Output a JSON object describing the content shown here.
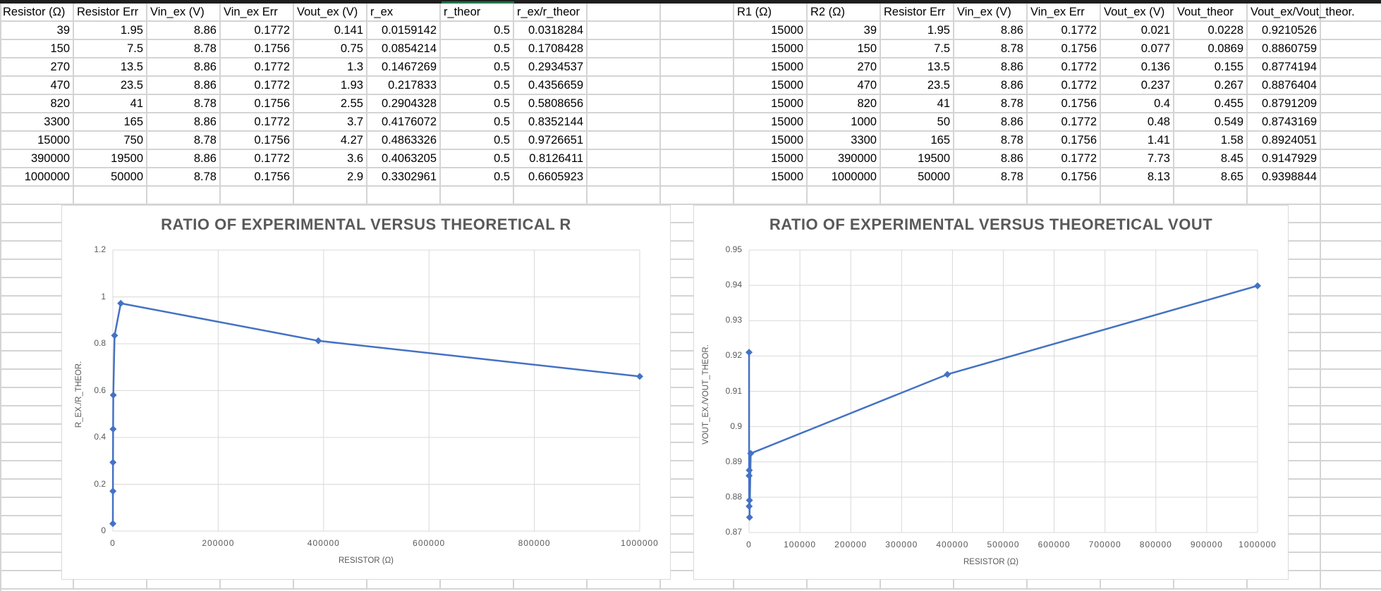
{
  "sheet": {
    "left_table": {
      "headers": [
        "Resistor (Ω)",
        "Resistor Err",
        "Vin_ex (V)",
        "Vin_ex Err",
        "Vout_ex (V)",
        "r_ex",
        "r_theor",
        "r_ex/r_theor"
      ],
      "rows": [
        [
          "39",
          "1.95",
          "8.86",
          "0.1772",
          "0.141",
          "0.0159142",
          "0.5",
          "0.0318284"
        ],
        [
          "150",
          "7.5",
          "8.78",
          "0.1756",
          "0.75",
          "0.0854214",
          "0.5",
          "0.1708428"
        ],
        [
          "270",
          "13.5",
          "8.86",
          "0.1772",
          "1.3",
          "0.1467269",
          "0.5",
          "0.2934537"
        ],
        [
          "470",
          "23.5",
          "8.86",
          "0.1772",
          "1.93",
          "0.217833",
          "0.5",
          "0.4356659"
        ],
        [
          "820",
          "41",
          "8.78",
          "0.1756",
          "2.55",
          "0.2904328",
          "0.5",
          "0.5808656"
        ],
        [
          "3300",
          "165",
          "8.86",
          "0.1772",
          "3.7",
          "0.4176072",
          "0.5",
          "0.8352144"
        ],
        [
          "15000",
          "750",
          "8.78",
          "0.1756",
          "4.27",
          "0.4863326",
          "0.5",
          "0.9726651"
        ],
        [
          "390000",
          "19500",
          "8.86",
          "0.1772",
          "3.6",
          "0.4063205",
          "0.5",
          "0.8126411"
        ],
        [
          "1000000",
          "50000",
          "8.78",
          "0.1756",
          "2.9",
          "0.3302961",
          "0.5",
          "0.6605923"
        ]
      ]
    },
    "right_table": {
      "headers": [
        "R1 (Ω)",
        "R2 (Ω)",
        "Resistor Err",
        "Vin_ex (V)",
        "Vin_ex Err",
        "Vout_ex (V)",
        "Vout_theor",
        "Vout_ex/Vout_theor."
      ],
      "rows": [
        [
          "15000",
          "39",
          "1.95",
          "8.86",
          "0.1772",
          "0.021",
          "0.0228",
          "0.9210526"
        ],
        [
          "15000",
          "150",
          "7.5",
          "8.78",
          "0.1756",
          "0.077",
          "0.0869",
          "0.8860759"
        ],
        [
          "15000",
          "270",
          "13.5",
          "8.86",
          "0.1772",
          "0.136",
          "0.155",
          "0.8774194"
        ],
        [
          "15000",
          "470",
          "23.5",
          "8.86",
          "0.1772",
          "0.237",
          "0.267",
          "0.8876404"
        ],
        [
          "15000",
          "820",
          "41",
          "8.78",
          "0.1756",
          "0.4",
          "0.455",
          "0.8791209"
        ],
        [
          "15000",
          "1000",
          "50",
          "8.86",
          "0.1772",
          "0.48",
          "0.549",
          "0.8743169"
        ],
        [
          "15000",
          "3300",
          "165",
          "8.78",
          "0.1756",
          "1.41",
          "1.58",
          "0.8924051"
        ],
        [
          "15000",
          "390000",
          "19500",
          "8.86",
          "0.1772",
          "7.73",
          "8.45",
          "0.9147929"
        ],
        [
          "15000",
          "1000000",
          "50000",
          "8.78",
          "0.1756",
          "8.13",
          "8.65",
          "0.9398844"
        ]
      ]
    }
  },
  "colors": {
    "series": "#4472c4",
    "gridline": "#d9d9d9",
    "axis_text": "#595959",
    "cell_border": "#d4d4d4",
    "selection": "#217346"
  },
  "chart_data": [
    {
      "type": "scatter",
      "title": "RATIO OF EXPERIMENTAL VERSUS THEORETICAL R",
      "xlabel": "RESISTOR (Ω)",
      "ylabel": "R_EX./R_THEOR.",
      "x": [
        39,
        150,
        270,
        470,
        820,
        3300,
        15000,
        390000,
        1000000
      ],
      "y": [
        0.0318284,
        0.1708428,
        0.2934537,
        0.4356659,
        0.5808656,
        0.8352144,
        0.9726651,
        0.8126411,
        0.6605923
      ],
      "xlim": [
        0,
        1000000
      ],
      "ylim": [
        0,
        1.2
      ],
      "xticks": [
        "0",
        "200000",
        "400000",
        "600000",
        "800000",
        "1000000"
      ],
      "yticks": [
        "0",
        "0.2",
        "0.4",
        "0.6",
        "0.8",
        "1",
        "1.2"
      ],
      "grid": true,
      "lines": true,
      "marker": "diamond"
    },
    {
      "type": "scatter",
      "title": "RATIO OF EXPERIMENTAL VERSUS THEORETICAL VOUT",
      "xlabel": "RESISTOR (Ω)",
      "ylabel": "VOUT_EX./VOUT_THEOR.",
      "x": [
        39,
        150,
        270,
        470,
        820,
        1000,
        3300,
        390000,
        1000000
      ],
      "y": [
        0.9210526,
        0.8860759,
        0.8774194,
        0.8876404,
        0.8791209,
        0.8743169,
        0.8924051,
        0.9147929,
        0.9398844
      ],
      "xlim": [
        0,
        1000000
      ],
      "ylim": [
        0.87,
        0.95
      ],
      "xticks": [
        "0",
        "100000",
        "200000",
        "300000",
        "400000",
        "500000",
        "600000",
        "700000",
        "800000",
        "900000",
        "1000000"
      ],
      "yticks": [
        "0.87",
        "0.88",
        "0.89",
        "0.9",
        "0.91",
        "0.92",
        "0.93",
        "0.94",
        "0.95"
      ],
      "grid": true,
      "lines": true,
      "marker": "diamond"
    }
  ]
}
